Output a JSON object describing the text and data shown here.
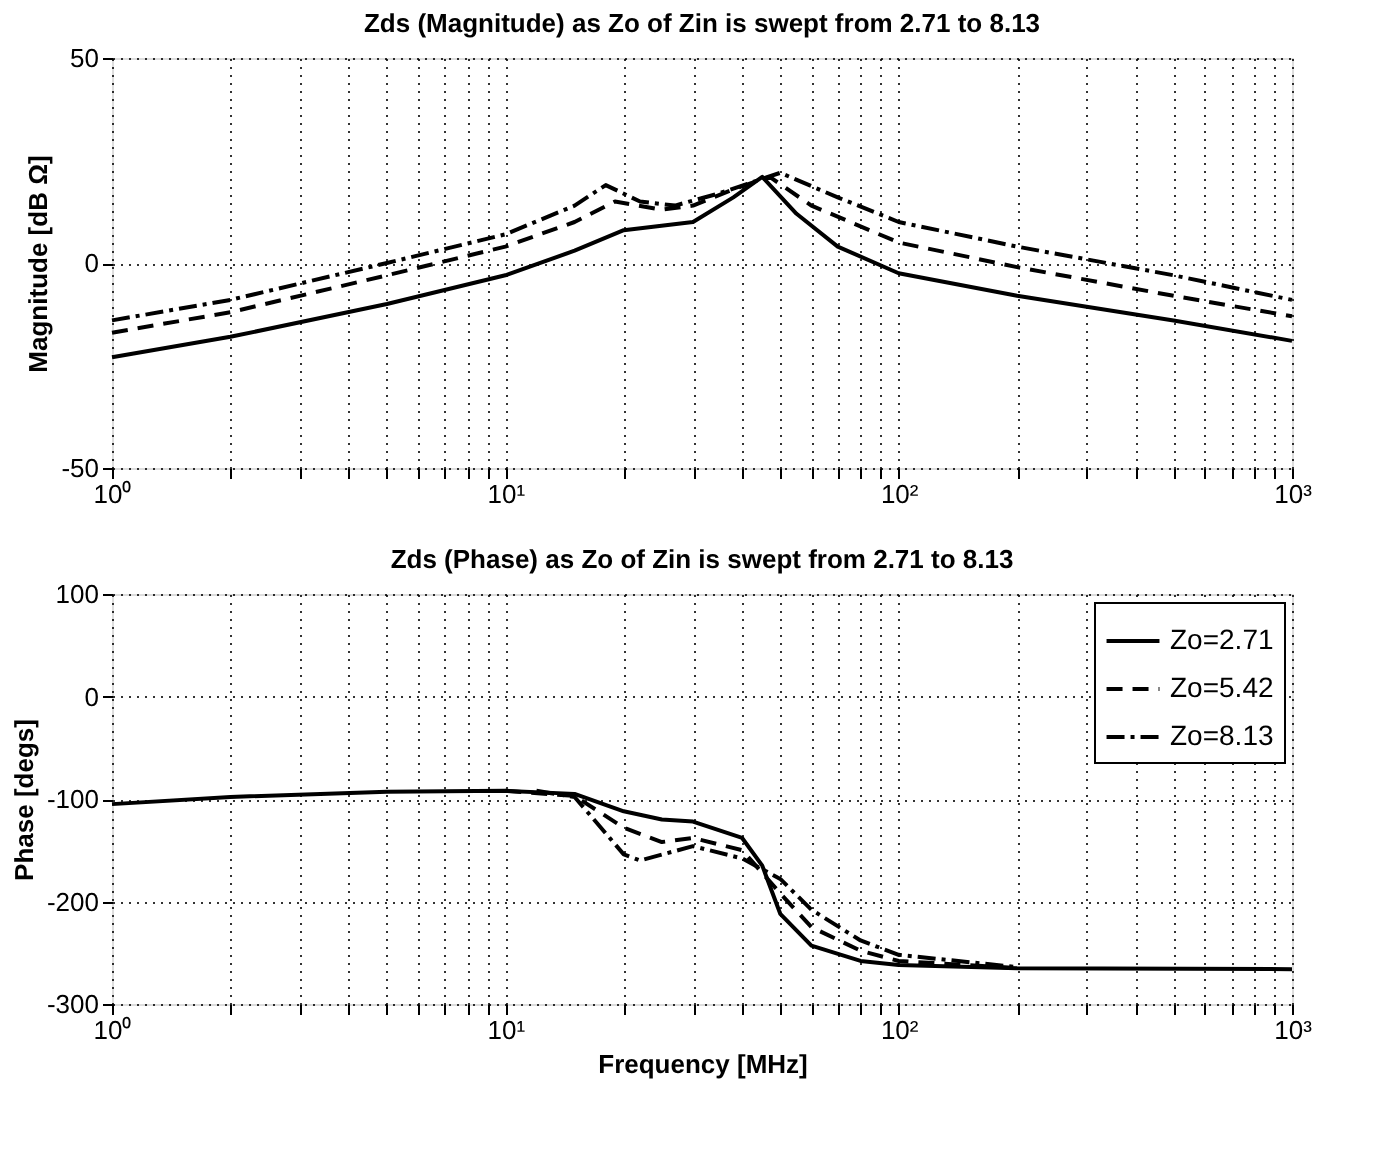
{
  "chart_data": [
    {
      "type": "line",
      "title": "Zds (Magnitude) as Zo of Zin is swept from 2.71 to 8.13",
      "ylabel": "Magnitude [dB Ω]",
      "log": "x",
      "grid": true,
      "legend": false,
      "xlim": [
        1,
        1000
      ],
      "ylim": [
        -50,
        50
      ],
      "yticks": [
        -50,
        0,
        50
      ],
      "xticks": [
        {
          "value": 1,
          "label": "10⁰"
        },
        {
          "value": 2,
          "label": null
        },
        {
          "value": 3,
          "label": null
        },
        {
          "value": 4,
          "label": null
        },
        {
          "value": 5,
          "label": null
        },
        {
          "value": 6,
          "label": null
        },
        {
          "value": 7,
          "label": null
        },
        {
          "value": 8,
          "label": null
        },
        {
          "value": 9,
          "label": null
        },
        {
          "value": 10,
          "label": "10¹"
        },
        {
          "value": 20,
          "label": null
        },
        {
          "value": 30,
          "label": null
        },
        {
          "value": 40,
          "label": null
        },
        {
          "value": 50,
          "label": null
        },
        {
          "value": 60,
          "label": null
        },
        {
          "value": 70,
          "label": null
        },
        {
          "value": 80,
          "label": null
        },
        {
          "value": 90,
          "label": null
        },
        {
          "value": 100,
          "label": "10²"
        },
        {
          "value": 200,
          "label": null
        },
        {
          "value": 300,
          "label": null
        },
        {
          "value": 400,
          "label": null
        },
        {
          "value": 500,
          "label": null
        },
        {
          "value": 600,
          "label": null
        },
        {
          "value": 700,
          "label": null
        },
        {
          "value": 800,
          "label": null
        },
        {
          "value": 900,
          "label": null
        },
        {
          "value": 1000,
          "label": "10³"
        }
      ],
      "series": [
        {
          "color": "#000000",
          "line_style": "solid",
          "x": [
            1,
            2,
            5,
            10,
            15,
            20,
            30,
            38,
            45,
            55,
            70,
            100,
            200,
            500,
            1000
          ],
          "values": [
            -23,
            -18,
            -10,
            -3,
            3,
            8,
            10,
            16,
            21,
            12,
            4,
            -2.5,
            -8,
            -14,
            -19
          ]
        },
        {
          "color": "#000000",
          "line_style": "dashed",
          "x": [
            1,
            2,
            5,
            10,
            15,
            19,
            25,
            30,
            38,
            47,
            60,
            100,
            200,
            500,
            1000
          ],
          "values": [
            -17,
            -12,
            -3,
            4,
            10,
            15,
            13,
            14,
            18,
            21,
            14,
            5,
            -1,
            -8,
            -13
          ]
        },
        {
          "color": "#000000",
          "line_style": "dashdot",
          "x": [
            1,
            2,
            5,
            10,
            15,
            18,
            22,
            27,
            35,
            50,
            70,
            100,
            200,
            500,
            1000
          ],
          "values": [
            -14,
            -9,
            0,
            7,
            14,
            19,
            15,
            14,
            17,
            22,
            16,
            10,
            4,
            -3,
            -9
          ]
        }
      ]
    },
    {
      "type": "line",
      "title": "Zds (Phase) as Zo of Zin is swept from 2.71 to 8.13",
      "xlabel": "Frequency [MHz]",
      "ylabel": "Phase [degs]",
      "log": "x",
      "grid": true,
      "legend": "top right",
      "xlim": [
        1,
        1000
      ],
      "ylim": [
        -300,
        100
      ],
      "yticks": [
        -300,
        -200,
        -100,
        0,
        100
      ],
      "xticks": [
        {
          "value": 1,
          "label": "10⁰"
        },
        {
          "value": 2,
          "label": null
        },
        {
          "value": 3,
          "label": null
        },
        {
          "value": 4,
          "label": null
        },
        {
          "value": 5,
          "label": null
        },
        {
          "value": 6,
          "label": null
        },
        {
          "value": 7,
          "label": null
        },
        {
          "value": 8,
          "label": null
        },
        {
          "value": 9,
          "label": null
        },
        {
          "value": 10,
          "label": "10¹"
        },
        {
          "value": 20,
          "label": null
        },
        {
          "value": 30,
          "label": null
        },
        {
          "value": 40,
          "label": null
        },
        {
          "value": 50,
          "label": null
        },
        {
          "value": 60,
          "label": null
        },
        {
          "value": 70,
          "label": null
        },
        {
          "value": 80,
          "label": null
        },
        {
          "value": 90,
          "label": null
        },
        {
          "value": 100,
          "label": "10²"
        },
        {
          "value": 200,
          "label": null
        },
        {
          "value": 300,
          "label": null
        },
        {
          "value": 400,
          "label": null
        },
        {
          "value": 500,
          "label": null
        },
        {
          "value": 600,
          "label": null
        },
        {
          "value": 700,
          "label": null
        },
        {
          "value": 800,
          "label": null
        },
        {
          "value": 900,
          "label": null
        },
        {
          "value": 1000,
          "label": "10³"
        }
      ],
      "series": [
        {
          "name": "Zo=2.71",
          "color": "#000000",
          "line_style": "solid",
          "x": [
            1,
            2,
            5,
            10,
            15,
            20,
            25,
            30,
            40,
            45,
            50,
            60,
            80,
            100,
            200,
            1000
          ],
          "values": [
            -105,
            -98,
            -93,
            -92,
            -95,
            -112,
            -120,
            -122,
            -138,
            -165,
            -212,
            -243,
            -258,
            -262,
            -265,
            -266
          ]
        },
        {
          "name": "Zo=5.42",
          "color": "#000000",
          "line_style": "dashed",
          "x": [
            10,
            15,
            20,
            25,
            30,
            40,
            50,
            60,
            80,
            100,
            200
          ],
          "values": [
            -92,
            -97,
            -128,
            -142,
            -138,
            -150,
            -192,
            -225,
            -248,
            -258,
            -265
          ]
        },
        {
          "name": "Zo=8.13",
          "color": "#000000",
          "line_style": "dashdot",
          "x": [
            12,
            15,
            20,
            22,
            30,
            40,
            50,
            60,
            80,
            100,
            200
          ],
          "values": [
            -92,
            -98,
            -154,
            -160,
            -146,
            -158,
            -178,
            -208,
            -238,
            -252,
            -264
          ]
        }
      ]
    }
  ]
}
